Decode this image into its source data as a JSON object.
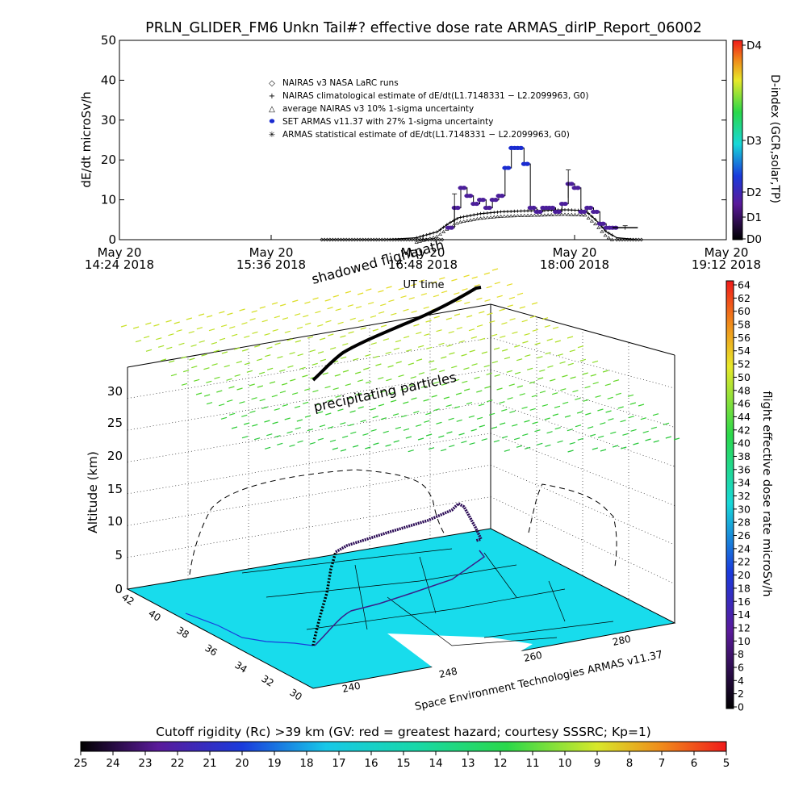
{
  "title": "PRLN_GLIDER_FM6 Unkn Tail#? effective dose rate ARMAS_dirIP_Report_06002",
  "colors": {
    "ocean": "#18dcec",
    "trace_dark": "#000000",
    "trace_mid": "#2a0a55",
    "trace_violet": "#4b1e9a",
    "mark_blue": "#1a2bd0"
  },
  "top_chart": {
    "ylabel": "dE/dt microSv/h",
    "yticks": [
      "0",
      "10",
      "20",
      "30",
      "40",
      "50"
    ],
    "xlabel": "UT time",
    "xticks": [
      {
        "day": "May 20",
        "time": "14:24 2018"
      },
      {
        "day": "May 20",
        "time": "15:36 2018"
      },
      {
        "day": "May 20",
        "time": "16:48 2018"
      },
      {
        "day": "May 20",
        "time": "18:00 2018"
      },
      {
        "day": "May 20",
        "time": "19:12 2018"
      }
    ],
    "legend": [
      {
        "symbol": "◇",
        "text": "NAIRAS v3 NASA LaRC runs"
      },
      {
        "symbol": "+",
        "text": "NAIRAS climatological estimate of dE/dt(L1.7148331 − L2.2099963, G0)"
      },
      {
        "symbol": "△",
        "text": "average NAIRAS v3 10% 1-sigma uncertainty"
      },
      {
        "symbol": "●",
        "text": "SET ARMAS v11.37 with 27% 1-sigma uncertainty"
      },
      {
        "symbol": "✳",
        "text": "ARMAS statistical estimate of dE/dt(L1.7148331 − L2.2099963, G0)"
      }
    ],
    "dindex_label": "D-index (GCR,solar,TP)",
    "dindex_ticks": [
      "D4",
      "D3",
      "D2",
      "D1",
      "D0"
    ]
  },
  "bottom_chart": {
    "zlabel": "Altitude (km)",
    "zticks": [
      "0",
      "5",
      "10",
      "15",
      "20",
      "25",
      "30"
    ],
    "lat_ticks": [
      "42",
      "40",
      "38",
      "36",
      "34",
      "32",
      "30"
    ],
    "lon_ticks": [
      "240",
      "248",
      "260",
      "280"
    ],
    "annotation_shadowed": "shadowed flightpath",
    "annotation_precip": "precipitating particles",
    "credit": "Space Environment Technologies ARMAS v11.37",
    "right_colorbar_label": "flight effective dose rate microSv/h",
    "right_colorbar_ticks": [
      "64",
      "62",
      "60",
      "58",
      "56",
      "54",
      "52",
      "50",
      "48",
      "46",
      "44",
      "42",
      "40",
      "38",
      "36",
      "34",
      "32",
      "30",
      "28",
      "26",
      "24",
      "22",
      "20",
      "18",
      "16",
      "14",
      "12",
      "10",
      "8",
      "6",
      "4",
      "2",
      "0"
    ]
  },
  "bottom_colorbar": {
    "title": "Cutoff rigidity (Rc) >39 km (GV: red = greatest hazard; courtesy SSSRC; Kp=1)",
    "ticks": [
      "25",
      "24",
      "23",
      "22",
      "21",
      "20",
      "19",
      "18",
      "17",
      "16",
      "15",
      "14",
      "13",
      "12",
      "11",
      "10",
      "9",
      "8",
      "7",
      "6",
      "5"
    ]
  },
  "chart_data": {
    "type": "line",
    "title": "PRLN_GLIDER_FM6 Unkn Tail#? effective dose rate ARMAS_dirIP_Report_06002",
    "xlabel": "UT time",
    "ylabel": "dE/dt microSv/h",
    "ylim": [
      0,
      50
    ],
    "xlim_minutes_utc": [
      864,
      1152
    ],
    "series": [
      {
        "name": "SET ARMAS v11.37 with 27% 1-sigma uncertainty",
        "x_minutes_utc": [
          1020,
          1023,
          1026,
          1029,
          1032,
          1035,
          1038,
          1041,
          1044,
          1047,
          1050,
          1053,
          1056,
          1059,
          1062,
          1065,
          1068,
          1071,
          1074,
          1077,
          1080,
          1083,
          1086,
          1089,
          1092,
          1095,
          1098
        ],
        "values": [
          3,
          8,
          13,
          11,
          9,
          10,
          8,
          10,
          11,
          18,
          23,
          23,
          19,
          8,
          7,
          8,
          8,
          7,
          9,
          14,
          13,
          7,
          8,
          7,
          4,
          3,
          3
        ]
      },
      {
        "name": "NAIRAS climatological estimate of dE/dt(L1.7148331 − L2.2099963, G0)",
        "x_minutes_utc": [
          960,
          990,
          1005,
          1015,
          1020,
          1025,
          1035,
          1045,
          1055,
          1065,
          1075,
          1085,
          1090,
          1095,
          1100,
          1110
        ],
        "values": [
          0,
          0,
          0.5,
          2,
          4,
          5.5,
          6.5,
          7,
          7.2,
          7.3,
          7.5,
          7.3,
          5,
          2,
          0.5,
          0
        ]
      }
    ],
    "legend_position": "top-center"
  }
}
